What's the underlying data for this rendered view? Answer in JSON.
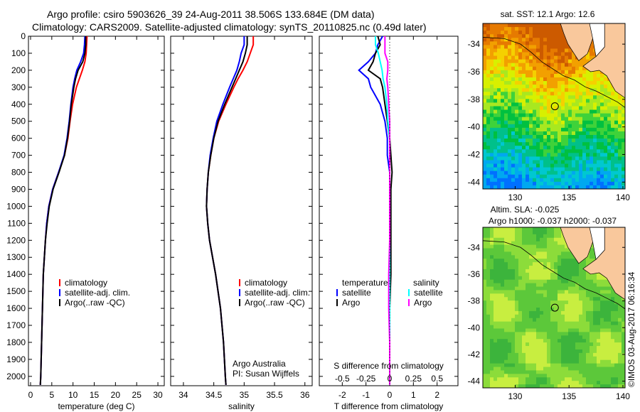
{
  "title": {
    "line1": "Argo profile: csiro 5903626_39 24-Aug-2011 38.506S 133.684E (DM data)",
    "line2": "Climatology: CARS2009. Satellite-adjusted climatology: synTS_20110825.nc (0.49d later)"
  },
  "colors": {
    "climatology": "#ff0000",
    "satellite": "#0000ff",
    "argo": "#000000",
    "sal_satellite": "#00ffff",
    "sal_argo": "#ff00ff",
    "land": "#f9c89c"
  },
  "credit": "©IMOS 03-Aug-2017 06:16:34",
  "chart_data": [
    {
      "type": "line",
      "name": "temperature",
      "xlabel": "temperature (deg C)",
      "ylabel": "",
      "xlim": [
        -0.5,
        31.5
      ],
      "ylim": [
        2055,
        0
      ],
      "xticks": [
        "0",
        "5",
        "10",
        "15",
        "20",
        "25",
        "30"
      ],
      "xtick_values": [
        0,
        5,
        10,
        15,
        20,
        25,
        30
      ],
      "yticks": [
        "0",
        "100",
        "200",
        "300",
        "400",
        "500",
        "600",
        "700",
        "800",
        "900",
        "1000",
        "1100",
        "1200",
        "1300",
        "1400",
        "1500",
        "1600",
        "1700",
        "1800",
        "1900",
        "2000"
      ],
      "depth": [
        0,
        50,
        100,
        150,
        200,
        250,
        300,
        400,
        500,
        600,
        700,
        800,
        900,
        1000,
        1100,
        1200,
        1400,
        1600,
        1800,
        2000,
        2050
      ],
      "series": [
        {
          "name": "climatology",
          "color": "#ff0000",
          "values": [
            13.3,
            13.2,
            13.1,
            12.8,
            12.2,
            11.5,
            10.8,
            9.9,
            9.3,
            8.8,
            8.0,
            6.6,
            5.2,
            4.3,
            3.8,
            3.5,
            3.0,
            2.8,
            2.6,
            2.4,
            2.3
          ]
        },
        {
          "name": "satellite-adj. clim.",
          "color": "#0000ff",
          "values": [
            12.8,
            12.7,
            12.5,
            11.8,
            10.9,
            10.4,
            10.0,
            9.5,
            9.1,
            8.6,
            7.9,
            6.6,
            5.2,
            4.3,
            3.8,
            3.5,
            3.0,
            2.8,
            2.6,
            2.4,
            2.3
          ]
        },
        {
          "name": "Argo(..raw -QC)",
          "color": "#000000",
          "values": [
            13.0,
            13.0,
            12.8,
            12.3,
            11.2,
            10.6,
            10.2,
            9.6,
            9.2,
            8.7,
            8.0,
            6.7,
            5.3,
            4.4,
            3.9,
            3.5,
            3.0,
            2.8,
            2.6,
            2.4,
            2.3
          ]
        }
      ],
      "legend": "bottom-left"
    },
    {
      "type": "line",
      "name": "salinity",
      "xlabel": "salinity",
      "xlim": [
        33.79,
        36.12
      ],
      "ylim": [
        2055,
        0
      ],
      "xticks": [
        "34",
        "34.5",
        "35",
        "35.5",
        "36"
      ],
      "xtick_values": [
        34,
        34.5,
        35,
        35.5,
        36
      ],
      "depth": [
        0,
        50,
        100,
        150,
        200,
        250,
        300,
        400,
        500,
        600,
        700,
        800,
        900,
        1000,
        1100,
        1200,
        1400,
        1600,
        1800,
        2000,
        2050
      ],
      "series": [
        {
          "name": "climatology",
          "color": "#ff0000",
          "values": [
            35.15,
            35.15,
            35.1,
            35.05,
            34.98,
            34.9,
            34.83,
            34.7,
            34.58,
            34.5,
            34.45,
            34.41,
            34.39,
            34.38,
            34.4,
            34.43,
            34.53,
            34.61,
            34.66,
            34.69,
            34.7
          ]
        },
        {
          "name": "satellite-adj. clim.",
          "color": "#0000ff",
          "values": [
            35.0,
            35.0,
            34.95,
            34.92,
            34.88,
            34.82,
            34.76,
            34.65,
            34.55,
            34.49,
            34.44,
            34.41,
            34.39,
            34.38,
            34.4,
            34.43,
            34.53,
            34.61,
            34.66,
            34.69,
            34.7
          ]
        },
        {
          "name": "Argo(..raw -QC)",
          "color": "#000000",
          "values": [
            35.05,
            35.05,
            35.02,
            34.98,
            34.92,
            34.86,
            34.8,
            34.68,
            34.57,
            34.5,
            34.45,
            34.41,
            34.39,
            34.38,
            34.4,
            34.43,
            34.53,
            34.61,
            34.66,
            34.69,
            34.7
          ]
        }
      ],
      "annotation": [
        "Argo Australia",
        "PI: Susan Wijffels"
      ],
      "legend": "bottom-center"
    },
    {
      "type": "line",
      "name": "difference",
      "xlabel": "T difference from climatology",
      "x2label": "S difference from climatology",
      "xlim": [
        -2.97,
        2.88
      ],
      "ylim": [
        2055,
        0
      ],
      "xticks": [
        "-2",
        "-1",
        "0",
        "1",
        "2"
      ],
      "xtick_values": [
        -2,
        -1,
        0,
        1,
        2
      ],
      "x2ticks": [
        "-0.5",
        "-0.25",
        "0",
        "0.25",
        "0.5"
      ],
      "x2tick_values": [
        -0.5,
        -0.25,
        0,
        0.25,
        0.5
      ],
      "legend_headers": [
        "temperature",
        "salinity"
      ],
      "depth": [
        0,
        50,
        100,
        150,
        200,
        250,
        300,
        400,
        500,
        600,
        700,
        800,
        900,
        1000,
        1100,
        1200,
        1400,
        1600,
        1800,
        2000,
        2050
      ],
      "series": [
        {
          "name": "satellite",
          "group": "temperature",
          "color": "#0000ff",
          "units": "T",
          "values": [
            -0.3,
            -0.5,
            -0.6,
            -0.9,
            -1.3,
            -0.9,
            -0.8,
            -0.4,
            -0.2,
            -0.1,
            -0.1,
            0,
            0,
            0,
            0,
            0,
            0,
            0,
            0,
            0,
            0
          ]
        },
        {
          "name": "Argo",
          "group": "temperature",
          "color": "#000000",
          "units": "T",
          "values": [
            -0.5,
            -0.4,
            -0.6,
            -0.7,
            -0.9,
            -0.4,
            -0.3,
            -0.2,
            -0.1,
            0,
            0.05,
            0.1,
            0.05,
            0.05,
            0.05,
            0.05,
            0.05,
            0,
            0,
            0,
            0
          ]
        },
        {
          "name": "satellite",
          "group": "salinity",
          "color": "#00ffff",
          "units": "S",
          "values": [
            -0.15,
            -0.15,
            -0.12,
            -0.1,
            -0.08,
            -0.07,
            -0.05,
            -0.03,
            -0.02,
            0,
            0,
            0,
            0,
            0,
            0,
            0,
            0,
            0,
            0,
            0,
            0
          ]
        },
        {
          "name": "Argo",
          "group": "salinity",
          "color": "#ff00ff",
          "units": "S",
          "values": [
            -0.05,
            -0.05,
            -0.05,
            -0.02,
            -0.02,
            -0.03,
            -0.02,
            -0.01,
            0,
            0,
            0,
            0,
            0,
            0,
            0,
            0,
            -0.01,
            -0.01,
            0,
            0,
            0
          ]
        }
      ]
    },
    {
      "type": "heatmap",
      "name": "sst-map",
      "title": "sat. SST: 12.1  Argo: 12.6",
      "xlim": [
        127,
        140.2
      ],
      "ylim": [
        -44.5,
        -32.5
      ],
      "xticks": [
        "130",
        "135",
        "140"
      ],
      "xtick_values": [
        130,
        135,
        140
      ],
      "yticks": [
        "-34",
        "-36",
        "-38",
        "-40",
        "-42",
        "-44"
      ],
      "ytick_values": [
        -34,
        -36,
        -38,
        -40,
        -42,
        -44
      ],
      "marker": {
        "lon": 133.684,
        "lat": -38.506
      }
    },
    {
      "type": "heatmap",
      "name": "sla-map",
      "title": [
        "Altim. SLA: -0.025",
        "Argo h1000: -0.037 h2000: -0.037"
      ],
      "xlim": [
        127,
        140.2
      ],
      "ylim": [
        -44.5,
        -32.5
      ],
      "xticks": [
        "130",
        "135",
        "140"
      ],
      "xtick_values": [
        130,
        135,
        140
      ],
      "yticks": [
        "-34",
        "-36",
        "-38",
        "-40",
        "-42",
        "-44"
      ],
      "ytick_values": [
        -34,
        -36,
        -38,
        -40,
        -42,
        -44
      ],
      "marker": {
        "lon": 133.684,
        "lat": -38.506
      }
    }
  ]
}
